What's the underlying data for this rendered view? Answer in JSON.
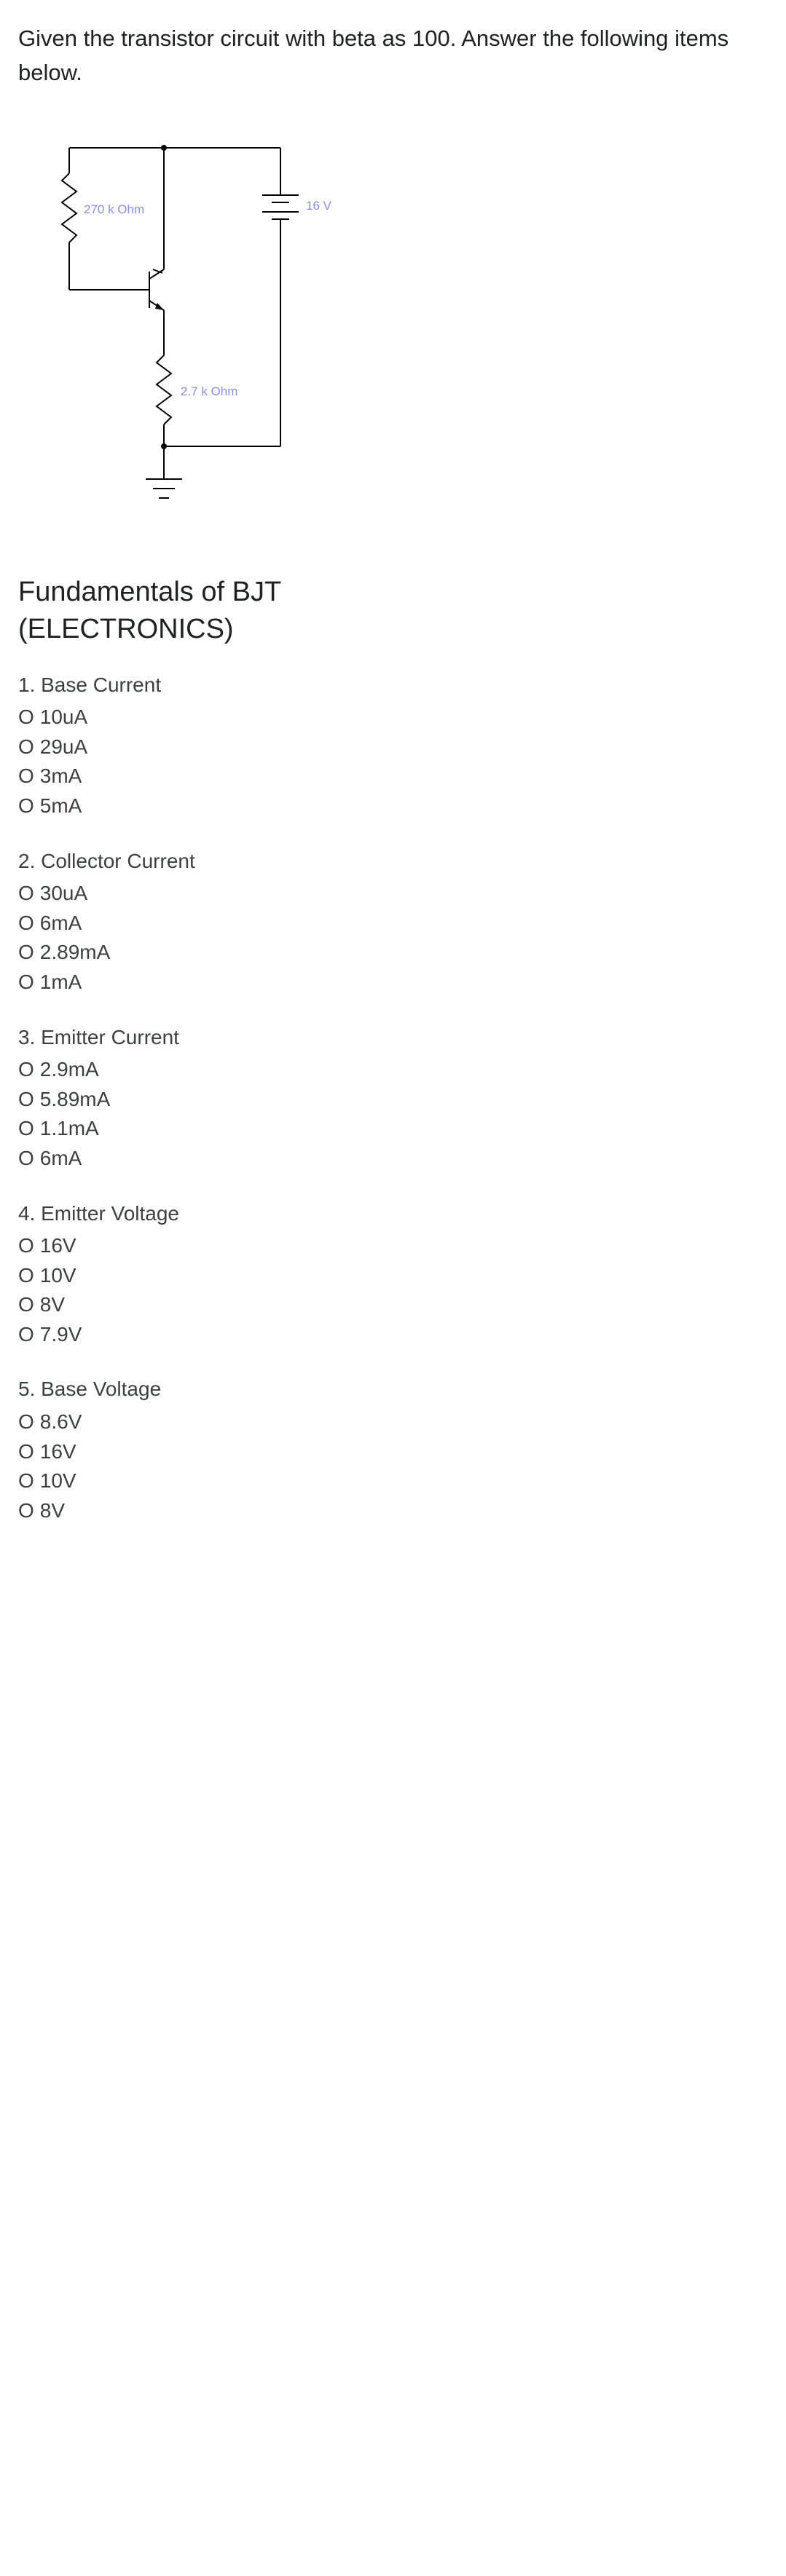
{
  "intro": "Given the transistor circuit with beta as 100. Answer the following items below.",
  "circuit": {
    "r1_label": "270 k Ohm",
    "r2_label": "2.7 k Ohm",
    "v_label": "16 V",
    "wire_color": "#000000",
    "label_color": "#8a8fde",
    "wire_width": 2
  },
  "heading_line1": "Fundamentals of BJT",
  "heading_line2": "(ELECTRONICS)",
  "questions": [
    {
      "title": "1. Base Current",
      "options": [
        "10uA",
        "29uA",
        "3mA",
        "5mA"
      ]
    },
    {
      "title": "2. Collector Current",
      "options": [
        "30uA",
        "6mA",
        "2.89mA",
        "1mA"
      ]
    },
    {
      "title": "3. Emitter Current",
      "options": [
        "2.9mA",
        "5.89mA",
        "1.1mA",
        "6mA"
      ]
    },
    {
      "title": "4. Emitter Voltage",
      "options": [
        "16V",
        "10V",
        "8V",
        "7.9V"
      ]
    },
    {
      "title": "5. Base Voltage",
      "options": [
        "8.6V",
        "16V",
        "10V",
        "8V"
      ]
    }
  ],
  "option_marker": "O"
}
